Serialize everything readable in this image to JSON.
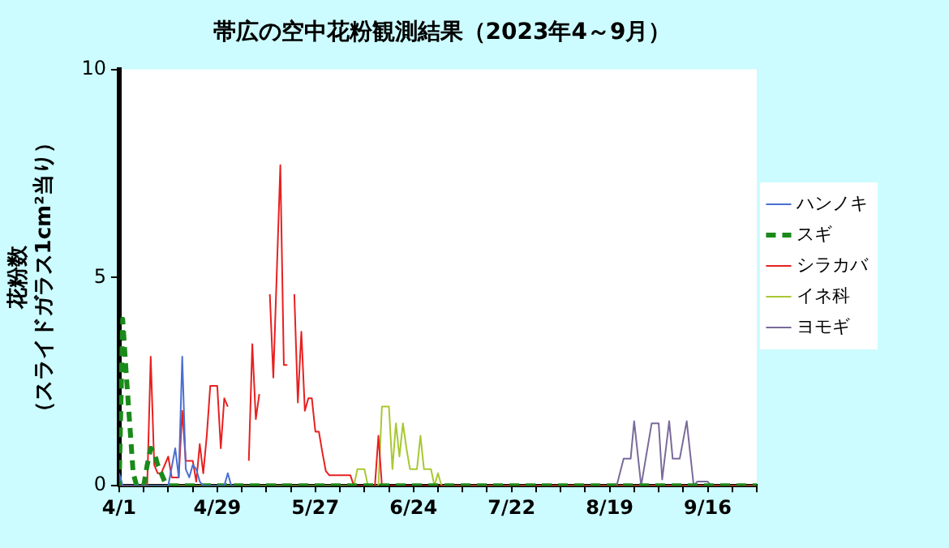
{
  "chart_data": {
    "type": "line",
    "title": "帯広の空中花粉観測結果（2023年4～9月）",
    "ylabel": "花粉数（スライドガラス1cm²当り）",
    "xlim": [
      "--04-01",
      "--09-30"
    ],
    "xticks": [
      {
        "value": "--04-01",
        "label": "4/1"
      },
      {
        "value": "--04-08",
        "label": null
      },
      {
        "value": "--04-15",
        "label": null
      },
      {
        "value": "--04-22",
        "label": null
      },
      {
        "value": "--04-29",
        "label": "4/29"
      },
      {
        "value": "--05-06",
        "label": null
      },
      {
        "value": "--05-13",
        "label": null
      },
      {
        "value": "--05-20",
        "label": null
      },
      {
        "value": "--05-27",
        "label": "5/27"
      },
      {
        "value": "--06-03",
        "label": null
      },
      {
        "value": "--06-10",
        "label": null
      },
      {
        "value": "--06-17",
        "label": null
      },
      {
        "value": "--06-24",
        "label": "6/24"
      },
      {
        "value": "--07-01",
        "label": null
      },
      {
        "value": "--07-08",
        "label": null
      },
      {
        "value": "--07-15",
        "label": null
      },
      {
        "value": "--07-22",
        "label": "7/22"
      },
      {
        "value": "--07-29",
        "label": null
      },
      {
        "value": "--08-05",
        "label": null
      },
      {
        "value": "--08-12",
        "label": null
      },
      {
        "value": "--08-19",
        "label": "8/19"
      },
      {
        "value": "--08-26",
        "label": null
      },
      {
        "value": "--09-02",
        "label": null
      },
      {
        "value": "--09-09",
        "label": null
      },
      {
        "value": "--09-16",
        "label": "9/16"
      },
      {
        "value": "--09-23",
        "label": null
      },
      {
        "value": "--09-30",
        "label": null
      }
    ],
    "ylim": [
      0,
      10
    ],
    "yticks": [
      0,
      5,
      10
    ],
    "grid": false,
    "legend": "right",
    "marker": "none",
    "series": [
      {
        "name": "ハンノキ",
        "color": "#4a6fd0",
        "line_style": "solid",
        "x": [
          "--04-01",
          "--04-02",
          "--04-03",
          "--04-15",
          "--04-17",
          "--04-18",
          "--04-19",
          "--04-20",
          "--04-21",
          "--04-22",
          "--04-23",
          "--04-24",
          "--04-25",
          "--04-26",
          "--05-01",
          "--05-02",
          "--05-03",
          "--05-04"
        ],
        "values": [
          0.3,
          0,
          0,
          0,
          0.9,
          0.2,
          3.1,
          0.4,
          0.2,
          0.5,
          0.4,
          0.1,
          0,
          0,
          0,
          0.3,
          0,
          0
        ]
      },
      {
        "name": "スギ",
        "color": "#1a8a1a",
        "line_style": "dashed",
        "x": [
          "--04-01",
          "--04-02",
          "--04-03",
          "--04-04",
          "--04-05",
          "--04-06",
          "--04-08",
          "--04-09",
          "--04-10",
          "--04-11",
          "--04-12",
          "--04-13",
          "--04-14",
          "--04-15",
          "--04-16",
          "--09-30"
        ],
        "values": [
          0,
          4.0,
          2.7,
          1.5,
          0.3,
          0,
          0,
          0.5,
          0.9,
          0.8,
          0.5,
          0.3,
          0.1,
          0,
          0,
          0
        ]
      },
      {
        "name": "シラカバ",
        "color": "#e82020",
        "line_style": "solid",
        "x": [
          "--04-01",
          "--04-09",
          "--04-10",
          "--04-11",
          "--04-12",
          "--04-13",
          "--04-15",
          "--04-16",
          "--04-18",
          "--04-19",
          "--04-20",
          "--04-22",
          "--04-23",
          "--04-24",
          "--04-25",
          "--04-26",
          "--04-27",
          "--04-28",
          "--04-29",
          "--04-30",
          "--05-01",
          "--05-02",
          "--05-03",
          "--05-07",
          "--05-08",
          "--05-09",
          "--05-10",
          "--05-11",
          "--05-12",
          "--05-13",
          "--05-14",
          "--05-15",
          "--05-17",
          "--05-18",
          "--05-19",
          "--05-20",
          "--05-21",
          "--05-22",
          "--05-23",
          "--05-24",
          "--05-25",
          "--05-26",
          "--05-27",
          "--05-28",
          "--05-29",
          "--05-30",
          "--05-31",
          "--06-02",
          "--06-06",
          "--06-07",
          "--06-08",
          "--06-11",
          "--06-13",
          "--06-14",
          "--06-15",
          "--09-30"
        ],
        "values": [
          0,
          0,
          3.1,
          0.5,
          0.3,
          0.3,
          0.7,
          0.2,
          0.2,
          1.8,
          0.6,
          0.6,
          0.1,
          1.0,
          0.3,
          1.2,
          2.4,
          2.4,
          2.4,
          0.9,
          2.1,
          1.9,
          null,
          null,
          0.6,
          3.4,
          1.6,
          2.2,
          null,
          null,
          4.6,
          2.6,
          7.7,
          2.9,
          2.9,
          null,
          4.6,
          2.0,
          3.7,
          1.8,
          2.1,
          2.1,
          1.3,
          1.3,
          0.8,
          0.35,
          0.25,
          0.25,
          0.25,
          0,
          0,
          0,
          0,
          1.2,
          0,
          0
        ]
      },
      {
        "name": "イネ科",
        "color": "#a8c832",
        "line_style": "solid",
        "x": [
          "--04-01",
          "--06-07",
          "--06-08",
          "--06-10",
          "--06-11",
          "--06-14",
          "--06-15",
          "--06-16",
          "--06-17",
          "--06-18",
          "--06-19",
          "--06-20",
          "--06-21",
          "--06-22",
          "--06-23",
          "--06-25",
          "--06-26",
          "--06-27",
          "--06-28",
          "--06-29",
          "--06-30",
          "--07-01",
          "--07-02",
          "--09-30"
        ],
        "values": [
          0,
          0,
          0.4,
          0.4,
          0,
          0,
          1.9,
          1.9,
          1.9,
          0.4,
          1.5,
          0.7,
          1.5,
          0.9,
          0.4,
          0.4,
          1.2,
          0.4,
          0.4,
          0.4,
          0,
          0.3,
          0,
          0
        ]
      },
      {
        "name": "ヨモギ",
        "color": "#7a6a9a",
        "line_style": "solid",
        "x": [
          "--08-21",
          "--08-23",
          "--08-25",
          "--08-26",
          "--08-28",
          "--08-31",
          "--09-02",
          "--09-03",
          "--09-05",
          "--09-06",
          "--09-08",
          "--09-10",
          "--09-12",
          "--09-13",
          "--09-16",
          "--09-17"
        ],
        "values": [
          0,
          0.65,
          0.65,
          1.55,
          0,
          1.5,
          1.5,
          0.15,
          1.55,
          0.65,
          0.65,
          1.55,
          0,
          0.1,
          0.1,
          0
        ]
      }
    ]
  }
}
